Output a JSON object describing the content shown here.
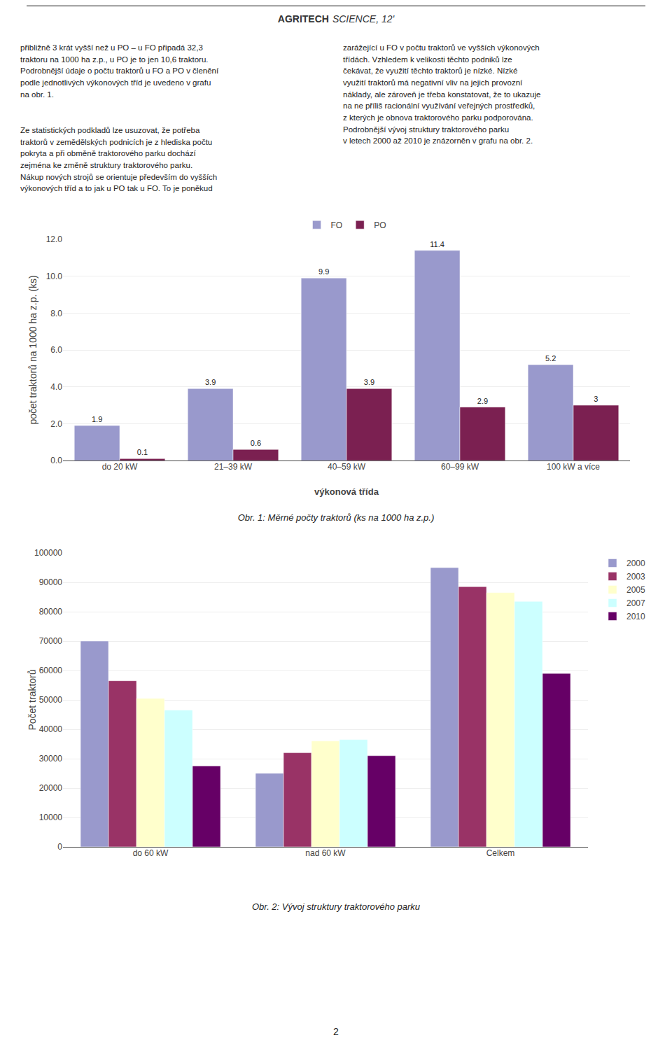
{
  "header": [
    "AGRITECH",
    "SCIENCE, 12'"
  ],
  "body_text": {
    "left": [
      "přibližně 3 krát vyšší než u PO – u FO připadá 32,3\ntraktoru na 1000 ha z.p., u PO je to jen 10,6 traktoru.\nPodrobnější údaje o počtu traktorů u FO a PO v členění\npodle jednotlivých výkonových tříd je uvedeno v grafu\nna obr. 1.",
      "Ze statistických podkladů lze usuzovat, že potřeba\ntraktorů v zemědělských podnicích je z hlediska počtu\npokryta a při obměně traktorového parku dochází\nzejména ke změně struktury traktorového parku.\nNákup nových strojů se orientuje především do vyšších\nvýkonových tříd a to jak u PO tak u FO. To je poněkud"
    ],
    "right": "zarážející u FO v počtu traktorů ve vyšších výkonových\ntřídách. Vzhledem k velikosti těchto podniků lze\nčekávat, že využití těchto traktorů je nízké. Nízké\nvyužití traktorů má negativní vliv na jejich provozní\nnáklady, ale zároveň je třeba konstatovat, že to ukazuje\nna ne příliš racionální využívání veřejných prostředků,\nz kterých je obnova traktorového parku podporována.\n    Podrobnější vývoj struktury traktorového parku\nv letech 2000 až 2010 je znázorněn v grafu na obr. 2."
  },
  "page_number": "2",
  "chart_data": [
    {
      "type": "bar",
      "categories": [
        "do 20 kW",
        "21–39 kW",
        "40–59 kW",
        "60–99 kW",
        "100 kW a více"
      ],
      "series": [
        {
          "name": "FO",
          "color": "#9999CC",
          "values": [
            1.9,
            3.9,
            9.9,
            11.4,
            5.2
          ]
        },
        {
          "name": "PO",
          "color": "#7B2051",
          "values": [
            0.1,
            0.6,
            3.9,
            2.9,
            3.0
          ]
        }
      ],
      "xlabel": "výkonová třída",
      "ylabel": "počet traktorů na 1000 ha z.p. (ks)",
      "ylim": [
        0,
        12.0
      ],
      "yticks": [
        {
          "value": 0,
          "label": "0.0"
        },
        {
          "value": 2,
          "label": "2.0"
        },
        {
          "value": 4,
          "label": "4.0"
        },
        {
          "value": 6,
          "label": "6.0"
        },
        {
          "value": 8,
          "label": "8.0"
        },
        {
          "value": 10,
          "label": "10.0"
        },
        {
          "value": 12,
          "label": "12.0"
        }
      ],
      "grid": true,
      "legend": "top",
      "data_labels": true,
      "caption": "Obr. 1: Měrné počty traktorů (ks na 1000 ha z.p.)"
    },
    {
      "type": "bar",
      "categories": [
        "do 60 kW",
        "nad 60 kW",
        "Celkem"
      ],
      "series": [
        {
          "name": "2000",
          "color": "#9999CC",
          "values": [
            70000,
            25000,
            95000
          ]
        },
        {
          "name": "2003",
          "color": "#993366",
          "values": [
            56500,
            32000,
            88500
          ]
        },
        {
          "name": "2005",
          "color": "#FFFFCC",
          "values": [
            50500,
            36000,
            86500
          ]
        },
        {
          "name": "2007",
          "color": "#CCFFFF",
          "values": [
            46500,
            36500,
            83500
          ]
        },
        {
          "name": "2010",
          "color": "#660066",
          "values": [
            27500,
            31000,
            59000
          ]
        }
      ],
      "ylabel": "Počet traktorů",
      "ylim": [
        0,
        100000
      ],
      "yticks": [
        0,
        10000,
        20000,
        30000,
        40000,
        50000,
        60000,
        70000,
        80000,
        90000,
        100000
      ],
      "grid": true,
      "legend": "right",
      "caption": "Obr. 2: Vývoj struktury traktorového parku"
    }
  ]
}
